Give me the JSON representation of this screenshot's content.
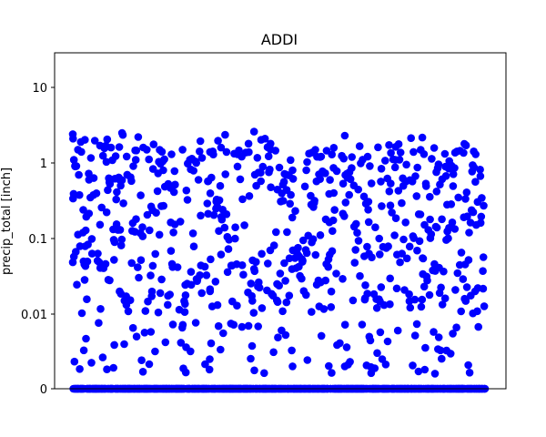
{
  "chart_data": {
    "type": "scatter",
    "title": "ADDI",
    "xlabel": "",
    "ylabel": "precip_total [inch]",
    "y_scale": "symlog",
    "yticks": [
      0,
      0.01,
      0.1,
      1,
      10
    ],
    "ytick_labels": [
      "0",
      "0.01",
      "0.1",
      "1",
      "10"
    ],
    "ylim": [
      0,
      30
    ],
    "grid": false,
    "marker_color": "#0000ff",
    "n_points": 1500,
    "x_values": "sample index 1-1500 (x axis has no printed ticks)",
    "points_sample": [
      {
        "x": 1,
        "y": 2.4
      },
      {
        "x": 2,
        "y": 2.1
      },
      {
        "x": 5,
        "y": 1.1
      },
      {
        "x": 10,
        "y": 0.9
      },
      {
        "x": 20,
        "y": 1.5
      },
      {
        "x": 30,
        "y": 1.9
      },
      {
        "x": 60,
        "y": 0.6
      },
      {
        "x": 100,
        "y": 1.7
      },
      {
        "x": 140,
        "y": 1.6
      },
      {
        "x": 175,
        "y": 0.5
      },
      {
        "x": 180,
        "y": 2.5
      },
      {
        "x": 230,
        "y": 1.1
      },
      {
        "x": 270,
        "y": 1.5
      },
      {
        "x": 330,
        "y": 0.8
      },
      {
        "x": 360,
        "y": 1.3
      },
      {
        "x": 400,
        "y": 1.5
      },
      {
        "x": 450,
        "y": 1.0
      },
      {
        "x": 500,
        "y": 1.4
      },
      {
        "x": 540,
        "y": 1.6
      },
      {
        "x": 560,
        "y": 1.4
      },
      {
        "x": 600,
        "y": 1.3
      },
      {
        "x": 640,
        "y": 1.8
      },
      {
        "x": 660,
        "y": 2.6
      },
      {
        "x": 700,
        "y": 2.1
      },
      {
        "x": 720,
        "y": 1.8
      },
      {
        "x": 800,
        "y": 0.8
      },
      {
        "x": 850,
        "y": 0.8
      },
      {
        "x": 900,
        "y": 1.2
      },
      {
        "x": 950,
        "y": 0.4
      },
      {
        "x": 990,
        "y": 2.3
      },
      {
        "x": 40,
        "y": 0.05
      },
      {
        "x": 300,
        "y": 0.005
      },
      {
        "x": 500,
        "y": 0.02
      },
      {
        "x": 800,
        "y": 0.003
      },
      {
        "x": 990,
        "y": 0.003
      }
    ]
  }
}
